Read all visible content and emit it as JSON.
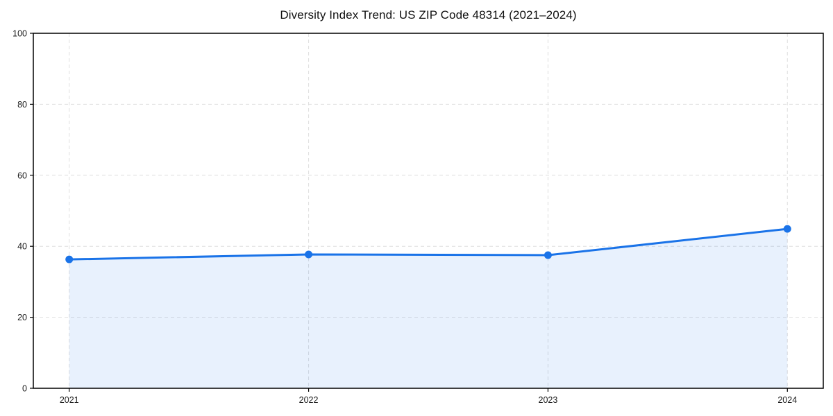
{
  "chart_data": {
    "type": "area",
    "title": "Diversity Index Trend: US ZIP Code 48314 (2021–2024)",
    "x": [
      "2021",
      "2022",
      "2023",
      "2024"
    ],
    "series": [
      {
        "name": "Diversity Index",
        "values": [
          36.3,
          37.7,
          37.5,
          44.9
        ]
      }
    ],
    "xlabel": "",
    "ylabel": "",
    "ylim": [
      0,
      100
    ],
    "yticks": [
      0,
      20,
      40,
      60,
      80,
      100
    ],
    "grid": "dashed",
    "legend": "none",
    "colors": {
      "line": "#1a73e8",
      "marker": "#1a73e8",
      "area_fill": "rgba(26,115,232,0.10)",
      "gridline": "#dedede",
      "spine": "#000000",
      "tick_text": "#1a1a1a"
    }
  }
}
